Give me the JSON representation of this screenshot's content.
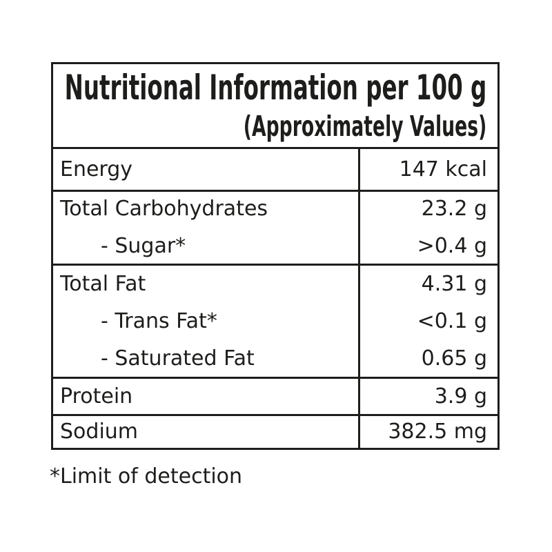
{
  "header": {
    "title": "Nutritional Information per 100 g",
    "subtitle": "(Approximately Values)"
  },
  "table": {
    "rows": [
      {
        "group": "energy",
        "items": [
          {
            "label": "Energy",
            "value": "147 kcal",
            "indent": false
          }
        ]
      },
      {
        "group": "carbohydrates",
        "items": [
          {
            "label": "Total Carbohydrates",
            "value": "23.2 g",
            "indent": false
          },
          {
            "label": "- Sugar*",
            "value": ">0.4 g",
            "indent": true
          }
        ]
      },
      {
        "group": "fat",
        "items": [
          {
            "label": "Total Fat",
            "value": "4.31 g",
            "indent": false
          },
          {
            "label": "- Trans Fat*",
            "value": "<0.1 g",
            "indent": true
          },
          {
            "label": "- Saturated Fat",
            "value": "0.65 g",
            "indent": true
          }
        ]
      },
      {
        "group": "protein",
        "items": [
          {
            "label": "Protein",
            "value": "3.9 g",
            "indent": false
          }
        ]
      },
      {
        "group": "sodium",
        "items": [
          {
            "label": "Sodium",
            "value": "382.5 mg",
            "indent": false
          }
        ]
      }
    ]
  },
  "footnote": "*Limit of detection",
  "colors": {
    "text": "#1d1d1b",
    "border": "#1d1d1b",
    "background": "#ffffff"
  }
}
